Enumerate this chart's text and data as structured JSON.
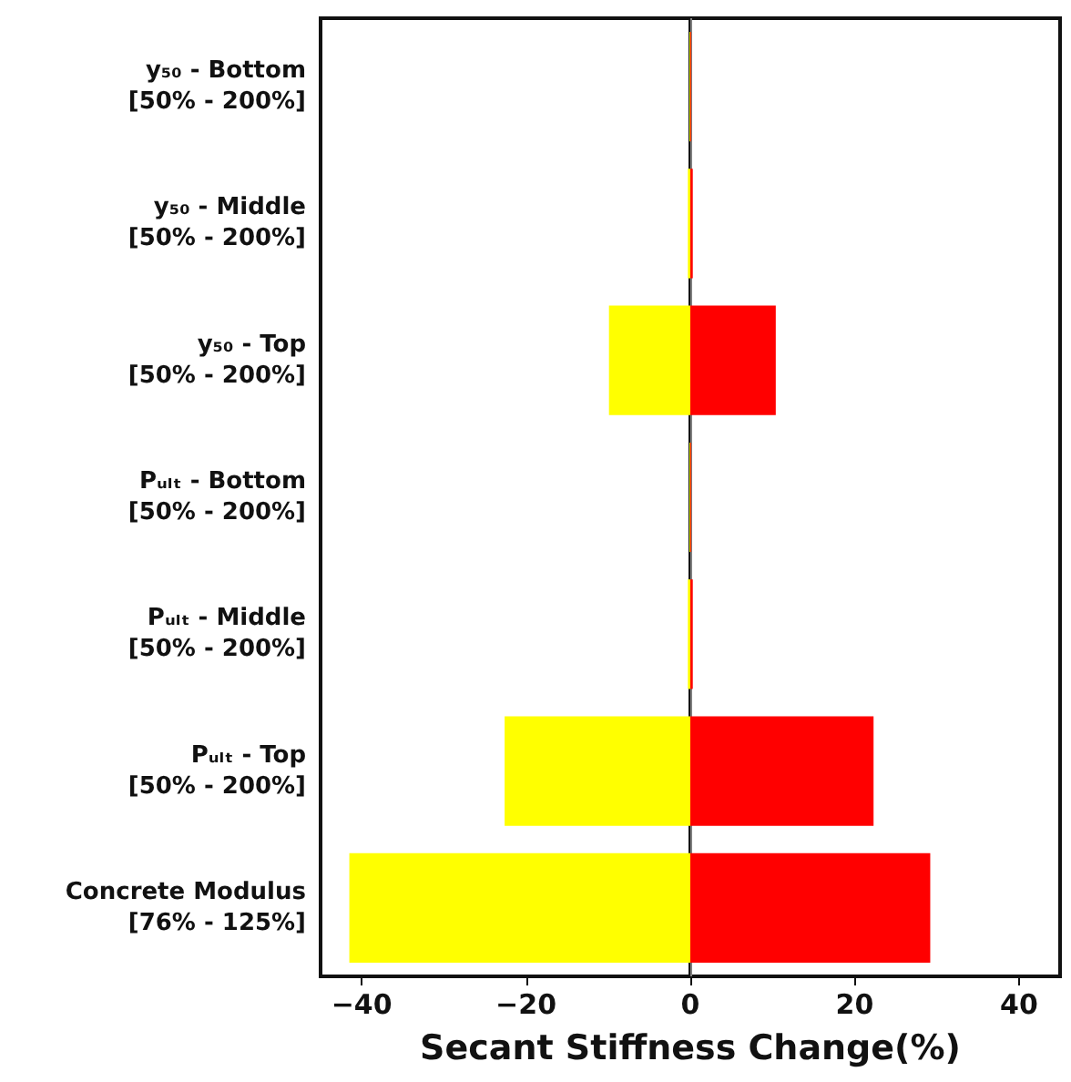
{
  "chart_data": {
    "type": "bar",
    "orientation": "horizontal",
    "xlabel": "Secant Stiffness Change(%)",
    "categories": [
      "y₅₀ - Bottom\n[50% - 200%]",
      "y₅₀ - Middle\n[50% - 200%]",
      "y₅₀ - Top\n[50% - 200%]",
      "Pᵤₗₜ - Bottom\n[50% - 200%]",
      "Pᵤₗₜ - Middle\n[50% - 200%]",
      "Pᵤₗₜ - Top\n[50% - 200%]",
      "Concrete Modulus\n[76% - 125%]"
    ],
    "series": [
      {
        "color": "#ffff00",
        "values": [
          -0.1,
          -0.3,
          -9.9,
          -0.1,
          -0.3,
          -22.6,
          -41.5
        ]
      },
      {
        "color": "#ff0000",
        "values": [
          0.1,
          0.3,
          10.4,
          0.1,
          0.3,
          22.3,
          29.2
        ]
      }
    ],
    "xlim": [
      -45,
      45
    ],
    "xticks": [
      {
        "value": -40,
        "label": "−40"
      },
      {
        "value": -20,
        "label": "−20"
      },
      0,
      20,
      40
    ],
    "ref_lines": [
      {
        "axis": "x",
        "value": 0,
        "color": "#808080"
      }
    ],
    "grid": false
  }
}
